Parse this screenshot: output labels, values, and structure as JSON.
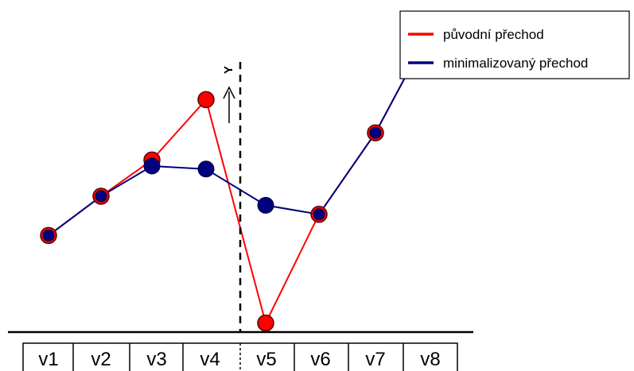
{
  "legend": {
    "items": [
      {
        "label": "původní přechod",
        "color": "#ff0000"
      },
      {
        "label": "minimalizovaný přechod",
        "color": "#000080"
      }
    ]
  },
  "divider": {
    "label": "Y"
  },
  "cells": [
    "v1",
    "v2",
    "v3",
    "v4",
    "v5",
    "v6",
    "v7",
    "v8"
  ],
  "series": [
    {
      "name": "původní přechod",
      "color": "#ff0000",
      "values": [
        0.22,
        0.35,
        0.47,
        0.67,
        -0.07,
        0.29,
        0.56,
        0.9
      ]
    },
    {
      "name": "minimalizovaný přechod",
      "color": "#000080",
      "values": [
        0.22,
        0.35,
        0.45,
        0.44,
        0.32,
        0.29,
        0.56,
        0.9
      ]
    }
  ]
}
